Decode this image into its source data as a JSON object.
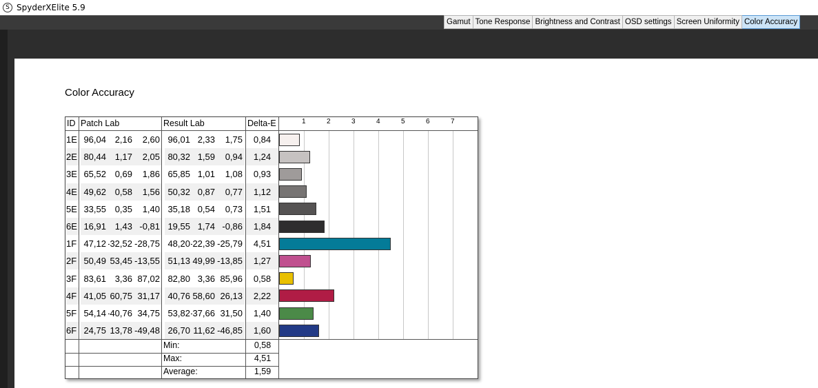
{
  "app": {
    "title": "SpyderXElite 5.9",
    "icon_letter": "S"
  },
  "tabs": [
    {
      "label": "Gamut",
      "active": false
    },
    {
      "label": "Tone Response",
      "active": false
    },
    {
      "label": "Brightness and Contrast",
      "active": false
    },
    {
      "label": "OSD settings",
      "active": false
    },
    {
      "label": "Screen Uniformity",
      "active": false
    },
    {
      "label": "Color Accuracy",
      "active": true
    }
  ],
  "page": {
    "title": "Color Accuracy"
  },
  "table": {
    "headers": {
      "id": "ID",
      "patch": "Patch Lab",
      "result": "Result Lab",
      "delta": "Delta-E"
    },
    "scale_ticks": [
      "1",
      "2",
      "3",
      "4",
      "5",
      "6",
      "7"
    ],
    "scale_max": 8,
    "rows": [
      {
        "id": "1E",
        "patch": [
          "96,04",
          "2,16",
          "2,60"
        ],
        "result": [
          "96,01",
          "2,33",
          "1,75"
        ],
        "delta": "0,84",
        "delta_value": 0.84,
        "color": "#f6f0ee"
      },
      {
        "id": "2E",
        "patch": [
          "80,44",
          "1,17",
          "2,05"
        ],
        "result": [
          "80,32",
          "1,59",
          "0,94"
        ],
        "delta": "1,24",
        "delta_value": 1.24,
        "color": "#c6c2c1"
      },
      {
        "id": "3E",
        "patch": [
          "65,52",
          "0,69",
          "1,86"
        ],
        "result": [
          "65,85",
          "1,01",
          "1,08"
        ],
        "delta": "0,93",
        "delta_value": 0.93,
        "color": "#9f9b9a"
      },
      {
        "id": "4E",
        "patch": [
          "49,62",
          "0,58",
          "1,56"
        ],
        "result": [
          "50,32",
          "0,87",
          "0,77"
        ],
        "delta": "1,12",
        "delta_value": 1.12,
        "color": "#777473"
      },
      {
        "id": "5E",
        "patch": [
          "33,55",
          "0,35",
          "1,40"
        ],
        "result": [
          "35,18",
          "0,54",
          "0,73"
        ],
        "delta": "1,51",
        "delta_value": 1.51,
        "color": "#555353"
      },
      {
        "id": "6E",
        "patch": [
          "16,91",
          "1,43",
          "-0,81"
        ],
        "result": [
          "19,55",
          "1,74",
          "-0,86"
        ],
        "delta": "1,84",
        "delta_value": 1.84,
        "color": "#2e2d2e"
      },
      {
        "id": "1F",
        "patch": [
          "47,12",
          "-32,52",
          "-28,75"
        ],
        "result": [
          "48,20",
          "-22,39",
          "-25,79"
        ],
        "delta": "4,51",
        "delta_value": 4.51,
        "color": "#047b98"
      },
      {
        "id": "2F",
        "patch": [
          "50,49",
          "53,45",
          "-13,55"
        ],
        "result": [
          "51,13",
          "49,99",
          "-13,85"
        ],
        "delta": "1,27",
        "delta_value": 1.27,
        "color": "#c0508f"
      },
      {
        "id": "3F",
        "patch": [
          "83,61",
          "3,36",
          "87,02"
        ],
        "result": [
          "82,80",
          "3,36",
          "85,96"
        ],
        "delta": "0,58",
        "delta_value": 0.58,
        "color": "#e9c000"
      },
      {
        "id": "4F",
        "patch": [
          "41,05",
          "60,75",
          "31,17"
        ],
        "result": [
          "40,76",
          "58,60",
          "26,13"
        ],
        "delta": "2,22",
        "delta_value": 2.22,
        "color": "#b01c45"
      },
      {
        "id": "5F",
        "patch": [
          "54,14",
          "-40,76",
          "34,75"
        ],
        "result": [
          "53,82",
          "-37,66",
          "31,50"
        ],
        "delta": "1,40",
        "delta_value": 1.4,
        "color": "#4b8a48"
      },
      {
        "id": "6F",
        "patch": [
          "24,75",
          "13,78",
          "-49,48"
        ],
        "result": [
          "26,70",
          "11,62",
          "-46,85"
        ],
        "delta": "1,60",
        "delta_value": 1.6,
        "color": "#223a86"
      }
    ],
    "summary": [
      {
        "label": "Min:",
        "value": "0,58"
      },
      {
        "label": "Max:",
        "value": "4,51"
      },
      {
        "label": "Average:",
        "value": "1,59"
      }
    ]
  }
}
